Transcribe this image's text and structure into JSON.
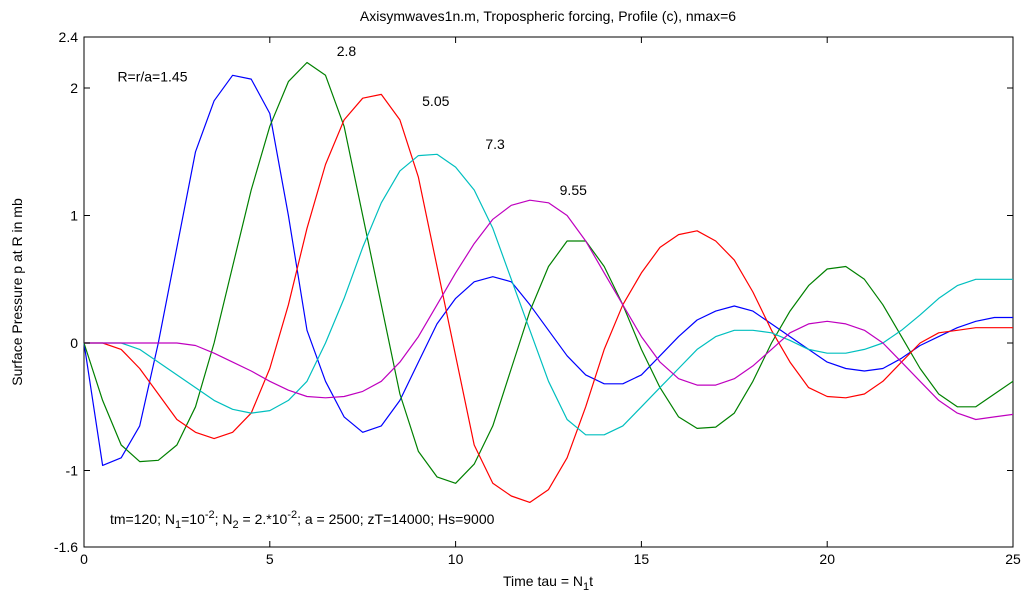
{
  "chart_data": {
    "type": "line",
    "title": "Axisymwaves1n.m, Tropospheric forcing, Profile (c), nmax=6",
    "xlabel": {
      "main": "Time tau = N",
      "sub": "1",
      "tail": "t"
    },
    "ylabel": "Surface Pressure p at R  in  mb",
    "xlim": [
      0,
      25
    ],
    "ylim": [
      -1.6,
      2.4
    ],
    "xticks": [
      0,
      5,
      10,
      15,
      20,
      25
    ],
    "yticks": [
      -1.6,
      -1,
      0,
      1,
      2,
      2.4
    ],
    "ytick_labels": [
      "-1.6",
      "-1",
      "0",
      "1",
      "2",
      "2.4"
    ],
    "grid": false,
    "legend": "none",
    "annotations": [
      {
        "text": "R=r/a=1.45",
        "x": 0.9,
        "y": 2.05
      },
      {
        "text": "2.8",
        "x": 6.8,
        "y": 2.25
      },
      {
        "text": "5.05",
        "x": 9.1,
        "y": 1.86
      },
      {
        "text": "7.3",
        "x": 10.8,
        "y": 1.52
      },
      {
        "text": "9.55",
        "x": 12.8,
        "y": 1.16
      }
    ],
    "params_text": {
      "p1": "tm=120; N",
      "s1": "1",
      "p2": "=10",
      "e1": "-2",
      "p3": "; N",
      "s2": "2",
      "p4": " = 2.*10",
      "e2": "-2",
      "p5": "; a = 2500;  zT=14000;  Hs=9000",
      "x": 0.7,
      "y": -1.42
    },
    "x": [
      0,
      0.5,
      1,
      1.5,
      2,
      2.5,
      3,
      3.5,
      4,
      4.5,
      5,
      5.5,
      6,
      6.5,
      7,
      7.5,
      8,
      8.5,
      9,
      9.5,
      10,
      10.5,
      11,
      11.5,
      12,
      12.5,
      13,
      13.5,
      14,
      14.5,
      15,
      15.5,
      16,
      16.5,
      17,
      17.5,
      18,
      18.5,
      19,
      19.5,
      20,
      20.5,
      21,
      21.5,
      22,
      22.5,
      23,
      23.5,
      24,
      24.5,
      25
    ],
    "series": [
      {
        "color": "#0000ff",
        "values": [
          0,
          -0.96,
          -0.9,
          -0.65,
          0,
          0.75,
          1.5,
          1.9,
          2.1,
          2.07,
          1.8,
          1.0,
          0.1,
          -0.3,
          -0.58,
          -0.7,
          -0.65,
          -0.45,
          -0.15,
          0.15,
          0.35,
          0.48,
          0.52,
          0.48,
          0.3,
          0.1,
          -0.1,
          -0.25,
          -0.32,
          -0.32,
          -0.25,
          -0.1,
          0.05,
          0.18,
          0.25,
          0.29,
          0.25,
          0.15,
          0.05,
          -0.05,
          -0.15,
          -0.2,
          -0.22,
          -0.2,
          -0.12,
          -0.02,
          0.05,
          0.12,
          0.17,
          0.2,
          0.2
        ]
      },
      {
        "color": "#008000",
        "values": [
          0,
          -0.45,
          -0.8,
          -0.93,
          -0.92,
          -0.8,
          -0.5,
          0,
          0.6,
          1.2,
          1.7,
          2.05,
          2.2,
          2.1,
          1.7,
          1.0,
          0.3,
          -0.4,
          -0.85,
          -1.05,
          -1.1,
          -0.95,
          -0.65,
          -0.2,
          0.25,
          0.6,
          0.8,
          0.8,
          0.6,
          0.3,
          -0.05,
          -0.35,
          -0.58,
          -0.67,
          -0.66,
          -0.55,
          -0.3,
          0,
          0.25,
          0.45,
          0.58,
          0.6,
          0.5,
          0.3,
          0.05,
          -0.2,
          -0.4,
          -0.5,
          -0.5,
          -0.4,
          -0.3
        ]
      },
      {
        "color": "#ff0000",
        "values": [
          0,
          0,
          -0.05,
          -0.2,
          -0.4,
          -0.6,
          -0.7,
          -0.75,
          -0.7,
          -0.55,
          -0.2,
          0.3,
          0.9,
          1.4,
          1.75,
          1.92,
          1.95,
          1.75,
          1.3,
          0.6,
          -0.1,
          -0.8,
          -1.1,
          -1.2,
          -1.25,
          -1.15,
          -0.9,
          -0.5,
          -0.05,
          0.3,
          0.55,
          0.75,
          0.85,
          0.88,
          0.8,
          0.65,
          0.4,
          0.1,
          -0.15,
          -0.35,
          -0.42,
          -0.43,
          -0.4,
          -0.3,
          -0.15,
          0,
          0.08,
          0.1,
          0.12,
          0.12,
          0.12
        ]
      },
      {
        "color": "#00bfbf",
        "values": [
          0,
          0,
          0,
          -0.05,
          -0.15,
          -0.25,
          -0.35,
          -0.45,
          -0.52,
          -0.55,
          -0.53,
          -0.45,
          -0.3,
          0,
          0.35,
          0.75,
          1.1,
          1.35,
          1.47,
          1.48,
          1.38,
          1.2,
          0.9,
          0.5,
          0.1,
          -0.3,
          -0.6,
          -0.72,
          -0.72,
          -0.65,
          -0.5,
          -0.35,
          -0.2,
          -0.05,
          0.05,
          0.1,
          0.1,
          0.08,
          0.02,
          -0.05,
          -0.08,
          -0.08,
          -0.05,
          0,
          0.1,
          0.22,
          0.35,
          0.45,
          0.5,
          0.5,
          0.5
        ]
      },
      {
        "color": "#bf00bf",
        "values": [
          0,
          0,
          0,
          0,
          0,
          0,
          -0.02,
          -0.08,
          -0.15,
          -0.22,
          -0.3,
          -0.37,
          -0.42,
          -0.43,
          -0.42,
          -0.38,
          -0.3,
          -0.15,
          0.05,
          0.3,
          0.55,
          0.78,
          0.97,
          1.08,
          1.12,
          1.1,
          1.0,
          0.8,
          0.55,
          0.3,
          0.05,
          -0.15,
          -0.28,
          -0.33,
          -0.33,
          -0.28,
          -0.18,
          -0.05,
          0.08,
          0.15,
          0.17,
          0.15,
          0.1,
          0,
          -0.15,
          -0.3,
          -0.45,
          -0.55,
          -0.6,
          -0.58,
          -0.56
        ]
      }
    ]
  }
}
